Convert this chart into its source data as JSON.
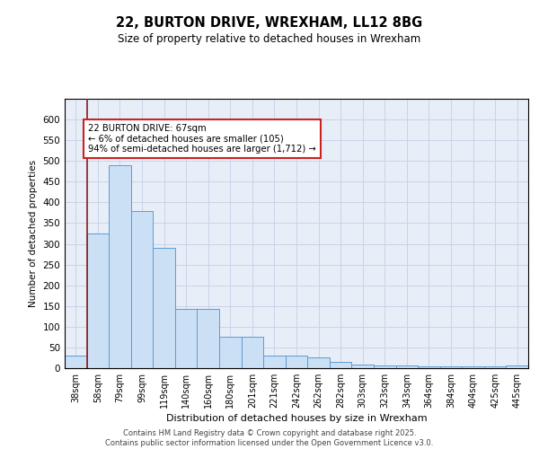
{
  "title_line1": "22, BURTON DRIVE, WREXHAM, LL12 8BG",
  "title_line2": "Size of property relative to detached houses in Wrexham",
  "xlabel": "Distribution of detached houses by size in Wrexham",
  "ylabel": "Number of detached properties",
  "categories": [
    "38sqm",
    "58sqm",
    "79sqm",
    "99sqm",
    "119sqm",
    "140sqm",
    "160sqm",
    "180sqm",
    "201sqm",
    "221sqm",
    "242sqm",
    "262sqm",
    "282sqm",
    "303sqm",
    "323sqm",
    "343sqm",
    "364sqm",
    "384sqm",
    "404sqm",
    "425sqm",
    "445sqm"
  ],
  "values": [
    30,
    325,
    490,
    380,
    290,
    142,
    142,
    75,
    75,
    30,
    30,
    25,
    15,
    9,
    7,
    6,
    5,
    5,
    5,
    5,
    6
  ],
  "bar_color": "#cce0f5",
  "bar_edge_color": "#5b9bd5",
  "grid_color": "#c8d4e8",
  "bg_color": "#e8eef8",
  "vline_color": "#8b1a1a",
  "annotation_text": "22 BURTON DRIVE: 67sqm\n← 6% of detached houses are smaller (105)\n94% of semi-detached houses are larger (1,712) →",
  "annotation_box_color": "#ffffff",
  "annotation_box_edge": "#cc2222",
  "footer": "Contains HM Land Registry data © Crown copyright and database right 2025.\nContains public sector information licensed under the Open Government Licence v3.0.",
  "ylim": [
    0,
    650
  ],
  "yticks": [
    0,
    50,
    100,
    150,
    200,
    250,
    300,
    350,
    400,
    450,
    500,
    550,
    600
  ]
}
